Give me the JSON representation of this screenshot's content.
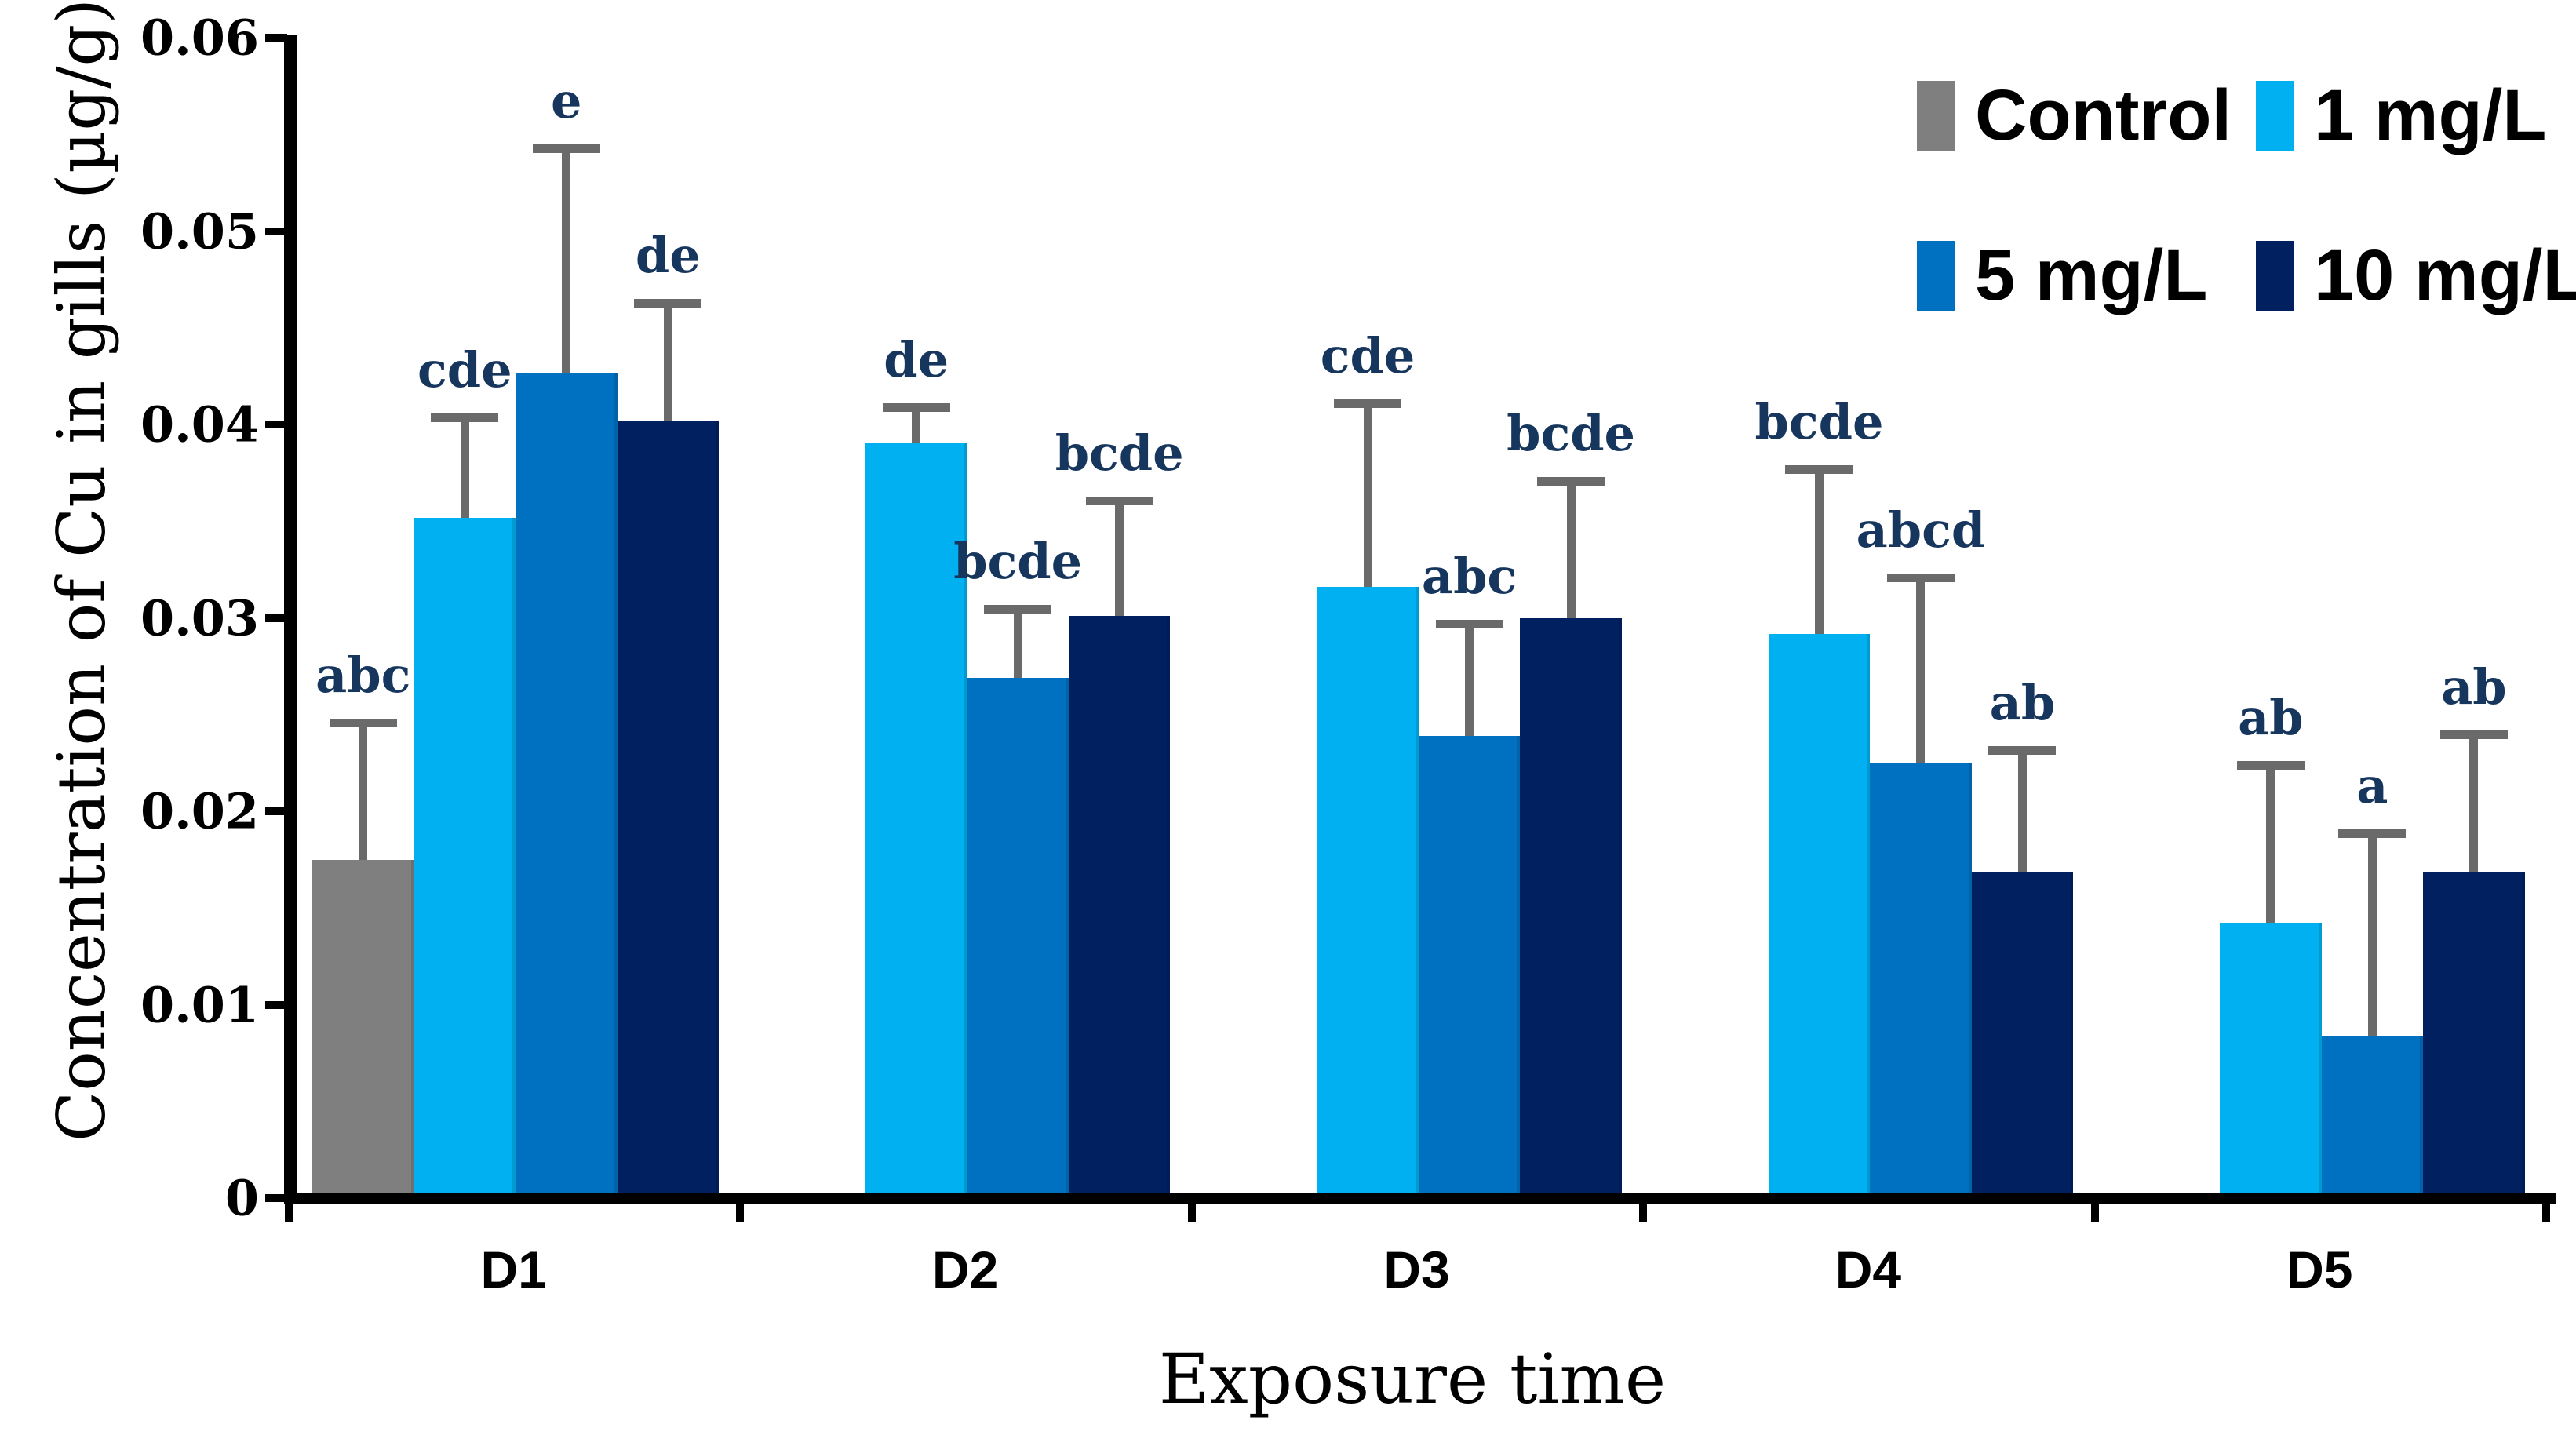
{
  "chart_data": {
    "type": "bar",
    "title": "",
    "xlabel": "Exposure time",
    "ylabel": "Concentration of Cu in gills (µg/g)",
    "categories": [
      "D1",
      "D2",
      "D3",
      "D4",
      "D5"
    ],
    "ylim": [
      0,
      0.06
    ],
    "ytick_step": 0.01,
    "ytick_labels": [
      "0",
      "0.01",
      "0.02",
      "0.03",
      "0.04",
      "0.05",
      "0.06"
    ],
    "grid": false,
    "legend_position": "top-right",
    "error_bar_color": "#6a6a6a",
    "letter_color": "#17365d",
    "series": [
      {
        "name": "Control",
        "color": "#7f7f7f",
        "values": [
          0.0172,
          null,
          null,
          null,
          null
        ],
        "error_top": [
          0.0245,
          null,
          null,
          null,
          null
        ],
        "letters": [
          "abc",
          null,
          null,
          null,
          null
        ]
      },
      {
        "name": "1 mg/L",
        "color": "#00b0f0",
        "values": [
          0.0349,
          0.0388,
          0.0313,
          0.0289,
          0.0139
        ],
        "error_top": [
          0.0403,
          0.0408,
          0.041,
          0.0376,
          0.0223
        ],
        "letters": [
          "cde",
          "de",
          "cde",
          "bcde",
          "ab"
        ]
      },
      {
        "name": "5 mg/L",
        "color": "#0070c0",
        "values": [
          0.0424,
          0.0266,
          0.0236,
          0.0222,
          0.0081
        ],
        "error_top": [
          0.0542,
          0.0304,
          0.0296,
          0.032,
          0.0188
        ],
        "letters": [
          "e",
          "bcde",
          "abc",
          "abcd",
          "a"
        ]
      },
      {
        "name": "10 mg/L",
        "color": "#002060",
        "values": [
          0.0399,
          0.0298,
          0.0297,
          0.0166,
          0.0166
        ],
        "error_top": [
          0.0462,
          0.036,
          0.037,
          0.0231,
          0.0239
        ],
        "letters": [
          "de",
          "bcde",
          "bcde",
          "ab",
          "ab"
        ]
      }
    ]
  }
}
